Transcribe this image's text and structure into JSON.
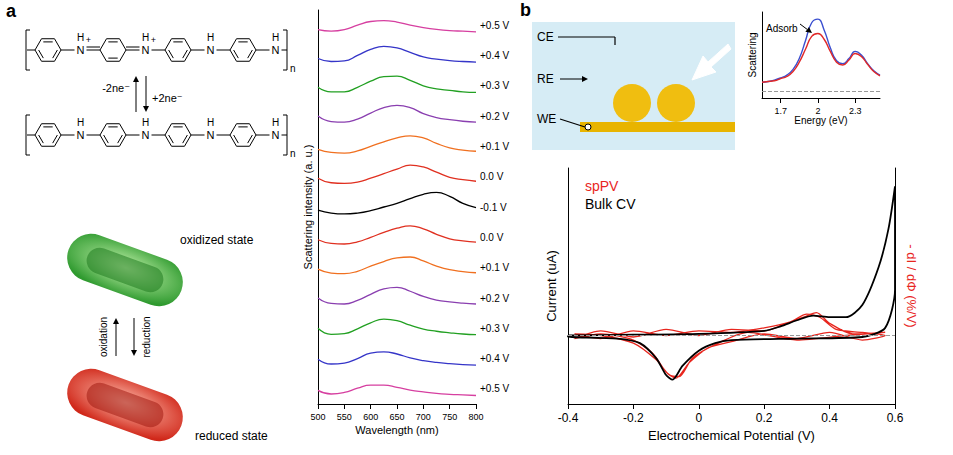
{
  "chart_data": [
    {
      "type": "line",
      "xlabel": "Wavelength (nm)",
      "ylabel": "Scattering intensity (a. u.)",
      "xlim": [
        500,
        800
      ],
      "xticks": [
        500,
        550,
        600,
        650,
        700,
        750,
        800
      ],
      "ylim": [
        0,
        1
      ],
      "tick_labels": "x",
      "grid": false,
      "x": [
        500,
        525,
        550,
        575,
        600,
        625,
        650,
        675,
        700,
        725,
        750,
        775,
        800
      ],
      "series": [
        {
          "name": "+0.5 V",
          "color": "#d63fa0",
          "values": [
            0.35,
            0.3,
            0.35,
            0.5,
            0.62,
            0.65,
            0.6,
            0.5,
            0.42,
            0.36,
            0.32,
            0.3,
            0.28
          ]
        },
        {
          "name": "+0.4 V",
          "color": "#3535c8",
          "values": [
            0.4,
            0.3,
            0.32,
            0.5,
            0.7,
            0.8,
            0.75,
            0.6,
            0.45,
            0.38,
            0.33,
            0.3,
            0.28
          ]
        },
        {
          "name": "+0.3 V",
          "color": "#22a022",
          "values": [
            0.45,
            0.3,
            0.3,
            0.45,
            0.65,
            0.8,
            0.82,
            0.68,
            0.5,
            0.4,
            0.35,
            0.3,
            0.28
          ]
        },
        {
          "name": "+0.2 V",
          "color": "#8a3fb0",
          "values": [
            0.5,
            0.32,
            0.3,
            0.4,
            0.6,
            0.78,
            0.85,
            0.78,
            0.58,
            0.45,
            0.38,
            0.33,
            0.3
          ]
        },
        {
          "name": "+0.1 V",
          "color": "#f07020",
          "values": [
            0.4,
            0.3,
            0.28,
            0.35,
            0.5,
            0.65,
            0.78,
            0.85,
            0.78,
            0.6,
            0.45,
            0.38,
            0.34
          ]
        },
        {
          "name": "0.0 V",
          "color": "#e03020",
          "values": [
            0.45,
            0.3,
            0.28,
            0.32,
            0.45,
            0.6,
            0.75,
            0.88,
            0.82,
            0.65,
            0.48,
            0.4,
            0.35
          ]
        },
        {
          "name": "-0.1 V",
          "color": "#000000",
          "values": [
            0.4,
            0.3,
            0.27,
            0.3,
            0.38,
            0.5,
            0.62,
            0.78,
            0.92,
            0.98,
            0.85,
            0.62,
            0.48
          ]
        },
        {
          "name": "0.0 V",
          "color": "#e03020",
          "values": [
            0.42,
            0.3,
            0.28,
            0.35,
            0.5,
            0.66,
            0.8,
            0.88,
            0.78,
            0.6,
            0.45,
            0.38,
            0.34
          ]
        },
        {
          "name": "+0.1 V",
          "color": "#f07020",
          "values": [
            0.45,
            0.32,
            0.3,
            0.38,
            0.55,
            0.7,
            0.82,
            0.85,
            0.72,
            0.55,
            0.43,
            0.37,
            0.33
          ]
        },
        {
          "name": "+0.2 V",
          "color": "#8a3fb0",
          "values": [
            0.5,
            0.32,
            0.3,
            0.42,
            0.62,
            0.8,
            0.85,
            0.72,
            0.55,
            0.43,
            0.37,
            0.33,
            0.3
          ]
        },
        {
          "name": "+0.3 V",
          "color": "#22a022",
          "values": [
            0.5,
            0.3,
            0.32,
            0.48,
            0.68,
            0.8,
            0.75,
            0.6,
            0.47,
            0.4,
            0.35,
            0.31,
            0.29
          ]
        },
        {
          "name": "+0.4 V",
          "color": "#3535c8",
          "values": [
            0.48,
            0.32,
            0.35,
            0.5,
            0.68,
            0.72,
            0.65,
            0.52,
            0.43,
            0.37,
            0.33,
            0.3,
            0.28
          ]
        },
        {
          "name": "+0.5 V",
          "color": "#d63fa0",
          "values": [
            0.45,
            0.33,
            0.38,
            0.52,
            0.62,
            0.62,
            0.55,
            0.46,
            0.4,
            0.35,
            0.32,
            0.3,
            0.28
          ]
        }
      ]
    },
    {
      "type": "line",
      "xlabel": "Energy (eV)",
      "ylabel": "Scattering",
      "annotation": "Adsorb",
      "xlim": [
        1.55,
        2.5
      ],
      "xticks": [
        1.7,
        2,
        2.3
      ],
      "ylim": [
        -0.1,
        1.1
      ],
      "yticks": [
        0
      ],
      "grid": true,
      "tick_labels": "x",
      "x": [
        1.55,
        1.6,
        1.65,
        1.7,
        1.75,
        1.8,
        1.85,
        1.9,
        1.95,
        2,
        2.05,
        2.1,
        2.15,
        2.2,
        2.25,
        2.3,
        2.35,
        2.4,
        2.45,
        2.5
      ],
      "series": [
        {
          "color": "#3a4fd0",
          "values": [
            0.12,
            0.13,
            0.15,
            0.18,
            0.22,
            0.3,
            0.45,
            0.7,
            0.95,
            1.0,
            0.85,
            0.6,
            0.42,
            0.38,
            0.45,
            0.55,
            0.5,
            0.38,
            0.28,
            0.22
          ]
        },
        {
          "color": "#e02828",
          "values": [
            0.12,
            0.13,
            0.14,
            0.17,
            0.2,
            0.27,
            0.4,
            0.58,
            0.76,
            0.8,
            0.72,
            0.55,
            0.4,
            0.36,
            0.43,
            0.52,
            0.48,
            0.37,
            0.27,
            0.21
          ]
        }
      ]
    },
    {
      "type": "line",
      "xlabel": "Electrochemical Potential (V)",
      "ylabel": "Current (uA)",
      "y2label": "- dI / dΦ (%/V)",
      "xlim": [
        -0.4,
        0.6
      ],
      "xticks": [
        -0.4,
        -0.2,
        0,
        0.2,
        0.4,
        0.6
      ],
      "ylim": [
        -0.45,
        1.1
      ],
      "yticks": [
        0
      ],
      "y2lim": [
        -0.45,
        1.1
      ],
      "grid": true,
      "tick_labels": "x",
      "legend": "upper left",
      "series": [
        {
          "name": "spPV",
          "color": "#e8261e",
          "axis": "y2",
          "x": [
            -0.38,
            -0.3,
            -0.2,
            -0.1,
            0,
            0.1,
            0.2,
            0.28,
            0.33,
            0.37,
            0.42,
            0.5,
            0.57,
            0.5,
            0.4,
            0.3,
            0.2,
            0.1,
            0.03,
            -0.03,
            -0.07,
            -0.1,
            -0.14,
            -0.2,
            -0.3,
            -0.38,
            -0.3,
            -0.2,
            -0.1,
            0,
            0.1,
            0.2,
            0.27,
            0.32,
            0.36,
            0.4,
            0.47,
            0.57,
            0.45,
            0.3,
            0.15,
            0.05,
            -0.02,
            -0.06,
            -0.09,
            -0.13,
            -0.2,
            -0.3,
            -0.38
          ],
          "values": [
            0.01,
            -0.02,
            0.03,
            0,
            0.03,
            0.02,
            0.05,
            0.09,
            0.14,
            0.12,
            0.04,
            0.02,
            0,
            -0.03,
            0.02,
            -0.02,
            0.01,
            -0.04,
            -0.08,
            -0.18,
            -0.28,
            -0.24,
            -0.12,
            -0.03,
            0.01,
            -0.02,
            0.03,
            -0.01,
            0.04,
            0,
            0.04,
            0.03,
            0.08,
            0.12,
            0.15,
            0.08,
            0.01,
            0.02,
            0,
            -0.03,
            0.02,
            -0.06,
            -0.15,
            -0.27,
            -0.26,
            -0.16,
            -0.05,
            0,
            0.01
          ]
        },
        {
          "name": "Bulk CV",
          "color": "#000000",
          "x": [
            -0.4,
            -0.2,
            0,
            0.2,
            0.25,
            0.3,
            0.35,
            0.4,
            0.45,
            0.5,
            0.55,
            0.58,
            0.6,
            0.6,
            0.57,
            0.5,
            0.3,
            0.1,
            0.05,
            0,
            -0.05,
            -0.08,
            -0.1,
            -0.13,
            -0.18,
            -0.25,
            -0.4,
            -0.4
          ],
          "values": [
            0,
            0.005,
            0.01,
            0.03,
            0.06,
            0.1,
            0.13,
            0.12,
            0.12,
            0.2,
            0.45,
            0.7,
            0.98,
            0.3,
            0.05,
            -0.01,
            -0.02,
            -0.03,
            -0.05,
            -0.1,
            -0.2,
            -0.29,
            -0.26,
            -0.15,
            -0.05,
            -0.02,
            -0.01,
            0
          ]
        }
      ]
    }
  ],
  "figure": {
    "panel_labels": [
      "a",
      "b"
    ],
    "structure": {
      "atom": "N",
      "hydrogen": "H",
      "charge": "+",
      "repeat": "n",
      "oxidation_label": "-2ne⁻",
      "reduction_label": "+2ne⁻"
    },
    "cartoon": {
      "oxidized": "oxidized state",
      "reduced": "reduced state",
      "up_arrow": "oxidation",
      "down_arrow": "reduction"
    },
    "schematic": {
      "counter_electrode": "CE",
      "reference_electrode": "RE",
      "working_electrode": "WE"
    }
  }
}
